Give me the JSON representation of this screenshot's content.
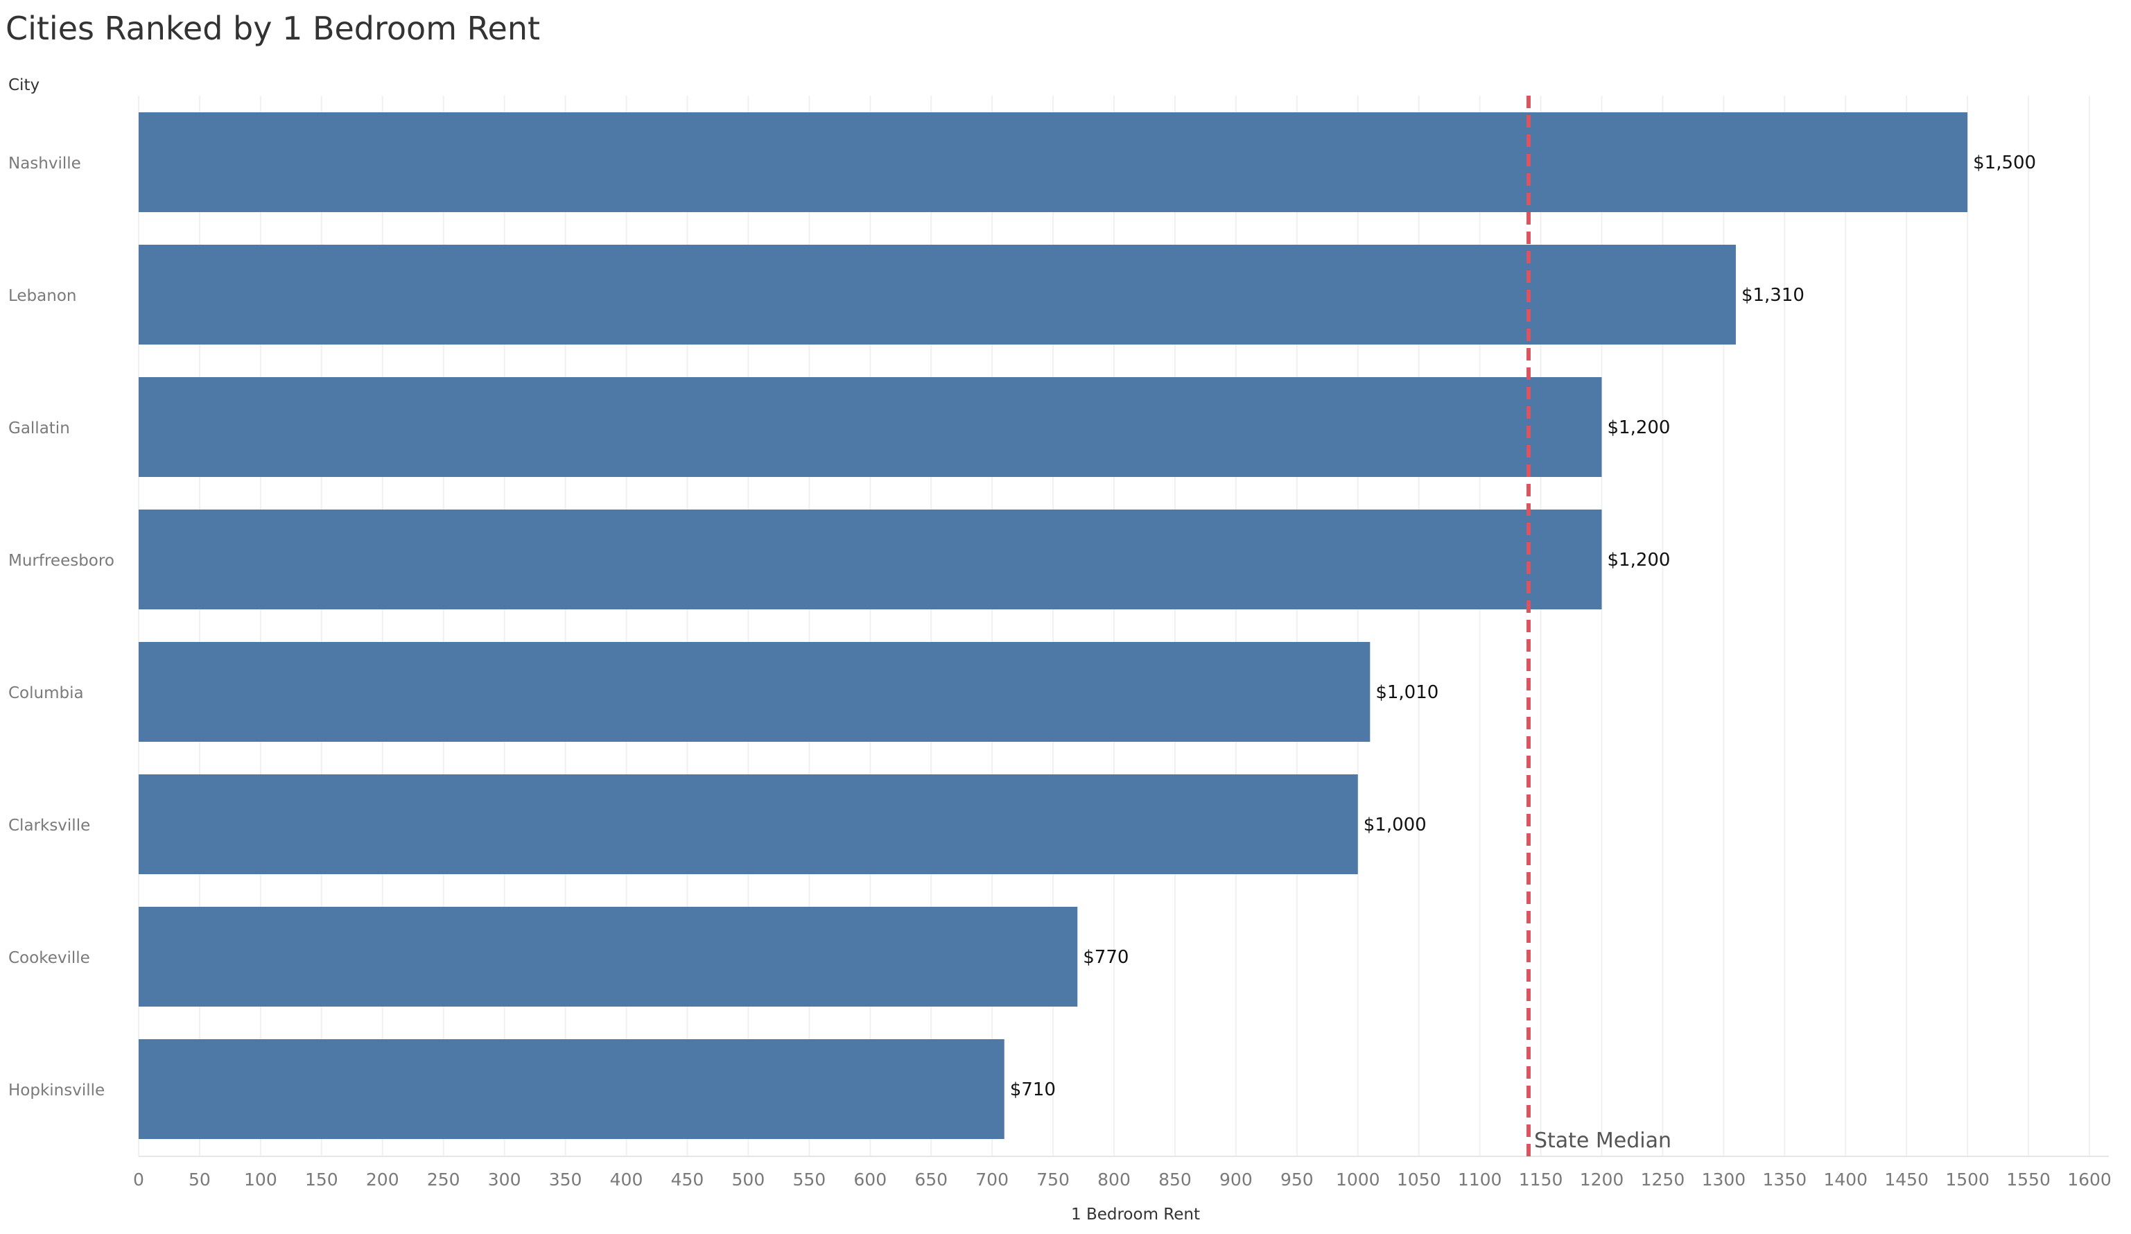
{
  "title": "Cities Ranked by 1 Bedroom Rent",
  "chart_data": {
    "type": "bar",
    "orientation": "horizontal",
    "title": "Cities Ranked by 1 Bedroom Rent",
    "ylabel": "City",
    "xlabel": "1 Bedroom Rent",
    "categories": [
      "Nashville",
      "Lebanon",
      "Gallatin",
      "Murfreesboro",
      "Columbia",
      "Clarksville",
      "Cookeville",
      "Hopkinsville"
    ],
    "values": [
      1500,
      1310,
      1200,
      1200,
      1010,
      1000,
      770,
      710
    ],
    "data_labels": [
      "$1,500",
      "$1,310",
      "$1,200",
      "$1,200",
      "$1,010",
      "$1,000",
      "$770",
      "$710"
    ],
    "xlim": [
      0,
      1600
    ],
    "x_tick_step": 50,
    "grid": "vertical",
    "reference_line": {
      "label": "State Median",
      "value": 1140,
      "style": "dashed",
      "color": "#d9555f"
    },
    "colors": {
      "bar": "#4e78a6",
      "grid": "#f0f0f0",
      "axis_text": "#7a7a7a",
      "data_label": "#111111"
    }
  }
}
